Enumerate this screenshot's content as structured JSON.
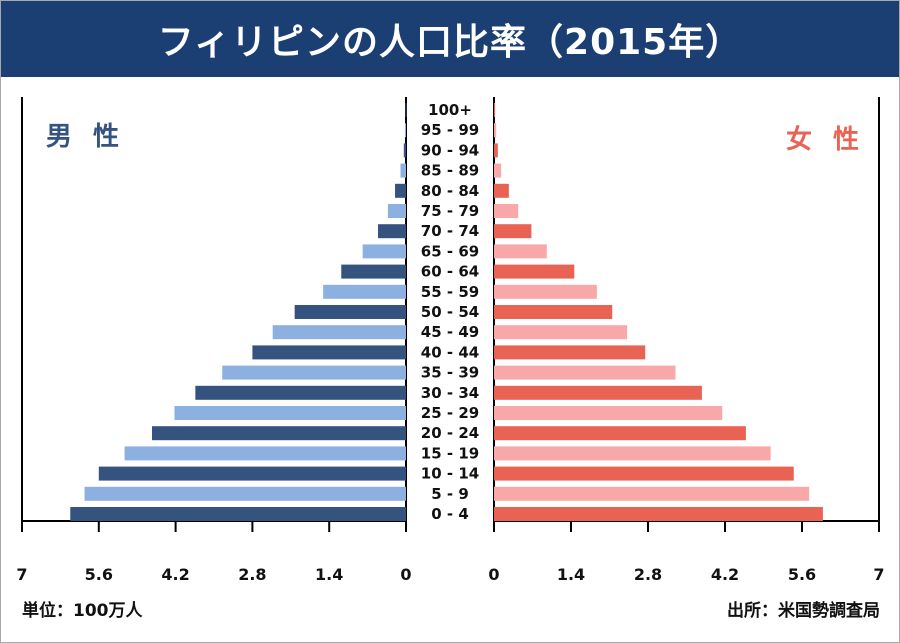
{
  "title": "フィリピンの人口比率（2015年）",
  "unit_note": "単位：100万人",
  "source_note": "出所：米国勢調査局",
  "colors": {
    "header_bg": "#1b3f73",
    "male_dark": "#34537e",
    "male_light": "#8cb0e0",
    "female_dark": "#e96355",
    "female_light": "#f8a8a8",
    "male_label": "#34537e",
    "female_label": "#e96355"
  },
  "chart_data": {
    "type": "bar",
    "orientation": "horizontal-population-pyramid",
    "categories": [
      "100+",
      "95 - 99",
      "90 - 94",
      "85 - 89",
      "80 - 84",
      "75 - 79",
      "70 - 74",
      "65 - 69",
      "60 - 64",
      "55 - 59",
      "50 - 54",
      "45 - 49",
      "40 - 44",
      "35 - 39",
      "30 - 34",
      "25 - 29",
      "20 - 24",
      "15 - 19",
      "10 - 14",
      "5 - 9",
      "0 - 4"
    ],
    "series": [
      {
        "name": "男 性",
        "values": [
          0.01,
          0.02,
          0.04,
          0.1,
          0.2,
          0.33,
          0.51,
          0.79,
          1.18,
          1.51,
          2.03,
          2.43,
          2.8,
          3.35,
          3.84,
          4.22,
          4.63,
          5.13,
          5.6,
          5.86,
          6.12
        ]
      },
      {
        "name": "女 性",
        "values": [
          0.02,
          0.04,
          0.07,
          0.13,
          0.27,
          0.44,
          0.68,
          0.96,
          1.46,
          1.87,
          2.15,
          2.42,
          2.75,
          3.3,
          3.78,
          4.15,
          4.58,
          5.03,
          5.45,
          5.73,
          5.98
        ]
      }
    ],
    "x_ticks_male": [
      "7",
      "5.6",
      "4.2",
      "2.8",
      "1.4",
      "0"
    ],
    "x_ticks_female": [
      "0",
      "1.4",
      "2.8",
      "4.2",
      "5.6",
      "7"
    ],
    "xlim": [
      0,
      7
    ],
    "bar_colors_alternate": true,
    "grid": false
  }
}
